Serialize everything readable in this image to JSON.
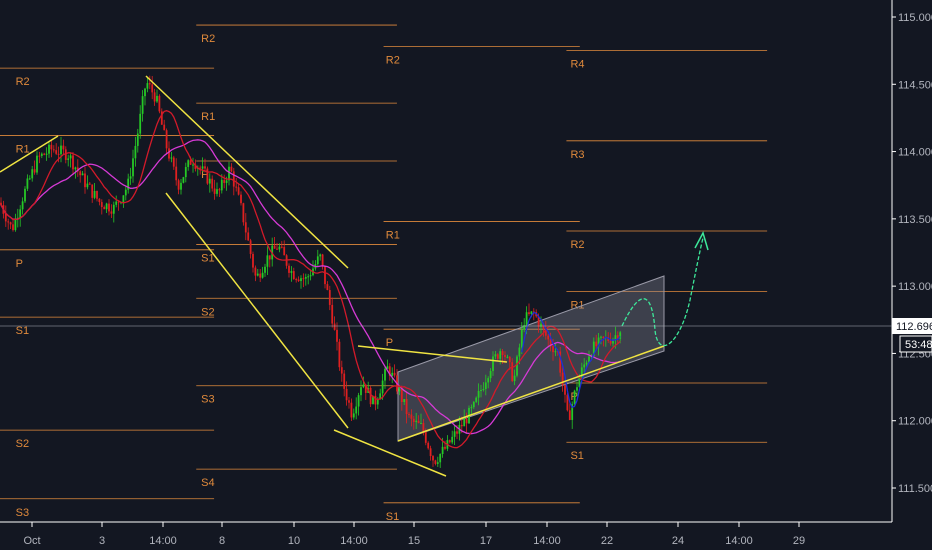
{
  "chart_data": {
    "type": "candlestick",
    "symbol_axis": "price",
    "ylim": [
      111.3,
      115.1
    ],
    "y_ticks": [
      "115.000",
      "114.500",
      "114.000",
      "113.500",
      "113.000",
      "112.500",
      "112.000",
      "111.500"
    ],
    "x_ticks": [
      "Oct",
      "3",
      "14:00",
      "8",
      "10",
      "14:00",
      "15",
      "17",
      "14:00",
      "22",
      "24",
      "14:00",
      "29"
    ],
    "last_price": "112.696",
    "countdown": "53:48",
    "colors": {
      "background": "#131722",
      "up_candle": "#26c926",
      "down_candle": "#e02020",
      "pivot": "#e08a3c",
      "ma_fast": "#1e2fd6",
      "ma_mid": "#d21a2a",
      "ma_slow": "#d63ad6",
      "trendline": "#f0e442",
      "projection": "#3de89a",
      "channel_fill": "#8c8c9c"
    },
    "pivot_blocks": [
      {
        "label_x": 0.022,
        "x_start": 0.0,
        "x_end": 0.24,
        "levels": [
          {
            "label": "R2",
            "value": 114.62
          },
          {
            "label": "R1",
            "value": 114.12
          },
          {
            "label": "P",
            "value": 113.27
          },
          {
            "label": "S1",
            "value": 112.77
          },
          {
            "label": "S2",
            "value": 111.93
          },
          {
            "label": "S3",
            "value": 111.42
          }
        ]
      },
      {
        "label_x": 0.23,
        "x_start": 0.22,
        "x_end": 0.445,
        "levels": [
          {
            "label": "R2",
            "value": 114.94
          },
          {
            "label": "R1",
            "value": 114.36
          },
          {
            "label": "P",
            "value": 113.93
          },
          {
            "label": "S1",
            "value": 113.31
          },
          {
            "label": "S2",
            "value": 112.91
          },
          {
            "label": "S3",
            "value": 112.26
          },
          {
            "label": "S4",
            "value": 111.64
          }
        ]
      },
      {
        "label_x": 0.437,
        "x_start": 0.43,
        "x_end": 0.65,
        "levels": [
          {
            "label": "R2",
            "value": 114.78
          },
          {
            "label": "R1",
            "value": 113.48
          },
          {
            "label": "P",
            "value": 112.68
          },
          {
            "label": "S1",
            "value": 111.39
          }
        ]
      },
      {
        "label_x": 0.644,
        "x_start": 0.635,
        "x_end": 0.86,
        "levels": [
          {
            "label": "R4",
            "value": 114.75
          },
          {
            "label": "R3",
            "value": 114.08
          },
          {
            "label": "R2",
            "value": 113.41
          },
          {
            "label": "R1",
            "value": 112.96
          },
          {
            "label": "P",
            "value": 112.28
          },
          {
            "label": "S1",
            "value": 111.84
          }
        ]
      }
    ]
  }
}
